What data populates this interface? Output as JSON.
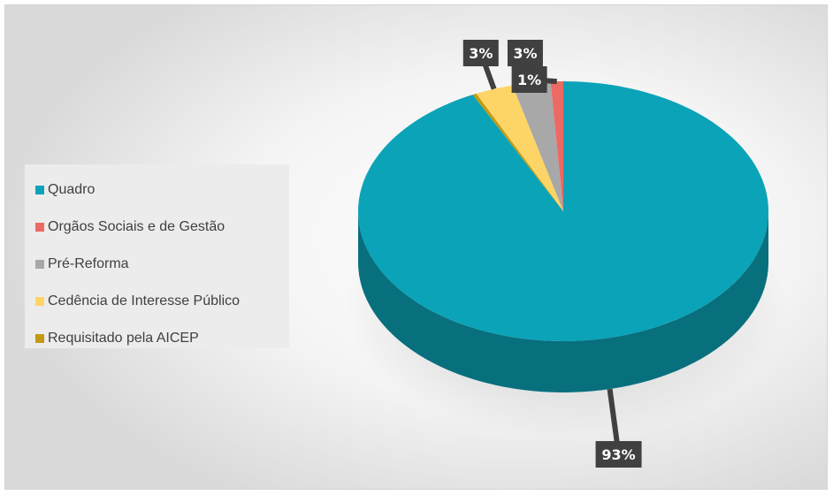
{
  "chart_data": {
    "type": "pie",
    "title": "",
    "legend_position": "left",
    "categories": [
      "Quadro",
      "Orgãos Sociais e de Gestão",
      "Pré-Reforma",
      "Cedência de Interesse Público",
      "Requisitado pela AICEP"
    ],
    "values": [
      93,
      1,
      3,
      3,
      0
    ],
    "data_labels": [
      "93%",
      "1%",
      "3%",
      "3%",
      ""
    ],
    "colors": [
      "#0ba3b8",
      "#ec6a64",
      "#a8a8a8",
      "#fdd566",
      "#c39a10"
    ]
  }
}
